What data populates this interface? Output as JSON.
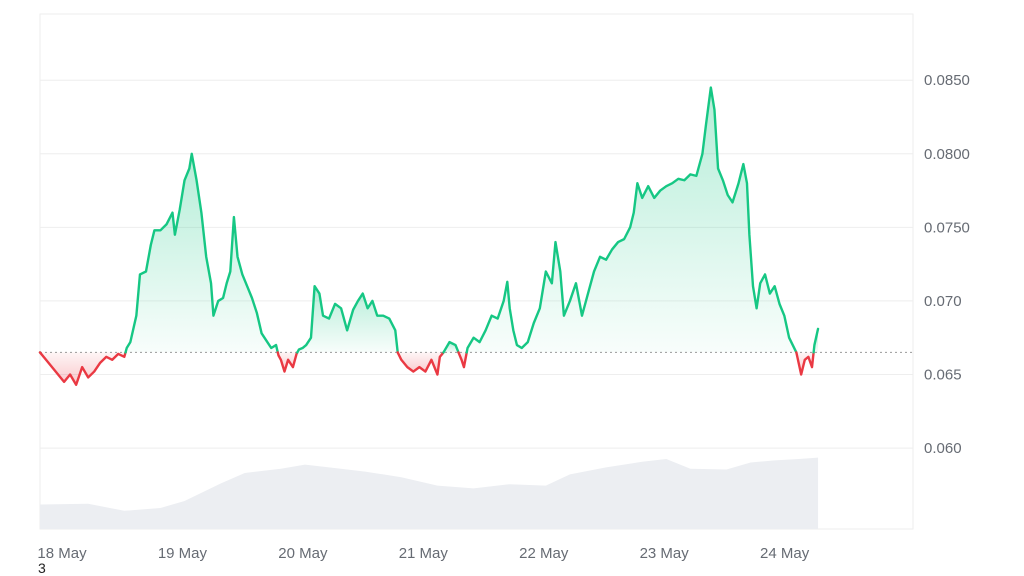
{
  "chart_data": {
    "type": "area",
    "baseline": 0.0665,
    "ylim": [
      0.0545,
      0.0895
    ],
    "y_ticks": [
      "0.0850",
      "0.0800",
      "0.0750",
      "0.070",
      "0.065",
      "0.060"
    ],
    "y_tick_values": [
      0.085,
      0.08,
      0.075,
      0.07,
      0.065,
      0.06
    ],
    "x_ticks": [
      "18 May",
      "19 May",
      "20 May",
      "21 May",
      "22 May",
      "23 May",
      "24 May"
    ],
    "x_tick_values": [
      0,
      1,
      2,
      3,
      4,
      5,
      6
    ],
    "xlim": [
      0,
      6.85
    ],
    "colors": {
      "up_line": "#16c784",
      "down_line": "#ea3943",
      "up_fill": "#16c784",
      "down_fill": "#ea3943",
      "grid": "#eeeeee",
      "volume": "#eceef2"
    },
    "series": [
      {
        "values": [
          [
            0.0,
            0.0665
          ],
          [
            0.05,
            0.066
          ],
          [
            0.1,
            0.0655
          ],
          [
            0.15,
            0.065
          ],
          [
            0.2,
            0.0645
          ],
          [
            0.25,
            0.065
          ],
          [
            0.3,
            0.0643
          ],
          [
            0.35,
            0.0655
          ],
          [
            0.4,
            0.0648
          ],
          [
            0.45,
            0.0652
          ],
          [
            0.5,
            0.0658
          ],
          [
            0.55,
            0.0662
          ],
          [
            0.6,
            0.066
          ],
          [
            0.65,
            0.0664
          ],
          [
            0.7,
            0.0662
          ],
          [
            0.72,
            0.0668
          ],
          [
            0.75,
            0.0672
          ],
          [
            0.8,
            0.069
          ],
          [
            0.83,
            0.0718
          ],
          [
            0.88,
            0.072
          ],
          [
            0.92,
            0.0738
          ],
          [
            0.95,
            0.0748
          ],
          [
            1.0,
            0.0748
          ],
          [
            1.05,
            0.0752
          ],
          [
            1.1,
            0.076
          ],
          [
            1.12,
            0.0745
          ],
          [
            1.16,
            0.0762
          ],
          [
            1.2,
            0.0782
          ],
          [
            1.24,
            0.079
          ],
          [
            1.26,
            0.08
          ],
          [
            1.3,
            0.0782
          ],
          [
            1.34,
            0.076
          ],
          [
            1.38,
            0.073
          ],
          [
            1.42,
            0.0712
          ],
          [
            1.44,
            0.069
          ],
          [
            1.48,
            0.07
          ],
          [
            1.52,
            0.0702
          ],
          [
            1.55,
            0.0712
          ],
          [
            1.58,
            0.072
          ],
          [
            1.61,
            0.0757
          ],
          [
            1.64,
            0.073
          ],
          [
            1.68,
            0.0718
          ],
          [
            1.72,
            0.071
          ],
          [
            1.76,
            0.0702
          ],
          [
            1.8,
            0.0692
          ],
          [
            1.84,
            0.0678
          ],
          [
            1.88,
            0.0673
          ],
          [
            1.92,
            0.0668
          ],
          [
            1.96,
            0.067
          ],
          [
            1.98,
            0.0663
          ],
          [
            2.0,
            0.066
          ],
          [
            2.03,
            0.0652
          ],
          [
            2.06,
            0.066
          ],
          [
            2.1,
            0.0655
          ],
          [
            2.13,
            0.0664
          ],
          [
            2.15,
            0.0667
          ],
          [
            2.18,
            0.0668
          ],
          [
            2.21,
            0.067
          ],
          [
            2.25,
            0.0675
          ],
          [
            2.28,
            0.071
          ],
          [
            2.32,
            0.0705
          ],
          [
            2.35,
            0.069
          ],
          [
            2.4,
            0.0688
          ],
          [
            2.45,
            0.0698
          ],
          [
            2.5,
            0.0695
          ],
          [
            2.55,
            0.068
          ],
          [
            2.6,
            0.0694
          ],
          [
            2.64,
            0.07
          ],
          [
            2.68,
            0.0705
          ],
          [
            2.72,
            0.0695
          ],
          [
            2.76,
            0.07
          ],
          [
            2.8,
            0.069
          ],
          [
            2.85,
            0.069
          ],
          [
            2.9,
            0.0688
          ],
          [
            2.95,
            0.068
          ],
          [
            2.97,
            0.0665
          ],
          [
            3.0,
            0.066
          ],
          [
            3.05,
            0.0655
          ],
          [
            3.1,
            0.0652
          ],
          [
            3.15,
            0.0655
          ],
          [
            3.2,
            0.0652
          ],
          [
            3.25,
            0.066
          ],
          [
            3.3,
            0.065
          ],
          [
            3.32,
            0.0662
          ],
          [
            3.35,
            0.0665
          ],
          [
            3.4,
            0.0672
          ],
          [
            3.45,
            0.067
          ],
          [
            3.5,
            0.066
          ],
          [
            3.52,
            0.0655
          ],
          [
            3.55,
            0.0668
          ],
          [
            3.6,
            0.0675
          ],
          [
            3.65,
            0.0672
          ],
          [
            3.7,
            0.068
          ],
          [
            3.75,
            0.069
          ],
          [
            3.8,
            0.0688
          ],
          [
            3.85,
            0.07
          ],
          [
            3.88,
            0.0713
          ],
          [
            3.9,
            0.0695
          ],
          [
            3.93,
            0.068
          ],
          [
            3.96,
            0.067
          ],
          [
            4.0,
            0.0668
          ],
          [
            4.05,
            0.0672
          ],
          [
            4.1,
            0.0685
          ],
          [
            4.15,
            0.0695
          ],
          [
            4.2,
            0.072
          ],
          [
            4.25,
            0.0712
          ],
          [
            4.28,
            0.074
          ],
          [
            4.32,
            0.072
          ],
          [
            4.35,
            0.069
          ],
          [
            4.4,
            0.07
          ],
          [
            4.45,
            0.0712
          ],
          [
            4.5,
            0.069
          ],
          [
            4.55,
            0.0705
          ],
          [
            4.6,
            0.072
          ],
          [
            4.65,
            0.073
          ],
          [
            4.7,
            0.0728
          ],
          [
            4.75,
            0.0735
          ],
          [
            4.8,
            0.074
          ],
          [
            4.85,
            0.0742
          ],
          [
            4.9,
            0.075
          ],
          [
            4.93,
            0.076
          ],
          [
            4.96,
            0.078
          ],
          [
            5.0,
            0.077
          ],
          [
            5.05,
            0.0778
          ],
          [
            5.1,
            0.077
          ],
          [
            5.15,
            0.0775
          ],
          [
            5.2,
            0.0778
          ],
          [
            5.25,
            0.078
          ],
          [
            5.3,
            0.0783
          ],
          [
            5.35,
            0.0782
          ],
          [
            5.4,
            0.0786
          ],
          [
            5.45,
            0.0785
          ],
          [
            5.5,
            0.08
          ],
          [
            5.53,
            0.082
          ],
          [
            5.57,
            0.0845
          ],
          [
            5.6,
            0.083
          ],
          [
            5.63,
            0.079
          ],
          [
            5.67,
            0.0782
          ],
          [
            5.71,
            0.0772
          ],
          [
            5.75,
            0.0767
          ],
          [
            5.8,
            0.078
          ],
          [
            5.84,
            0.0793
          ],
          [
            5.87,
            0.078
          ],
          [
            5.89,
            0.0745
          ],
          [
            5.92,
            0.071
          ],
          [
            5.95,
            0.0695
          ],
          [
            5.98,
            0.0712
          ],
          [
            6.02,
            0.0718
          ],
          [
            6.06,
            0.0705
          ],
          [
            6.1,
            0.071
          ],
          [
            6.14,
            0.0698
          ],
          [
            6.18,
            0.069
          ],
          [
            6.22,
            0.0675
          ],
          [
            6.25,
            0.067
          ],
          [
            6.28,
            0.0665
          ],
          [
            6.32,
            0.065
          ],
          [
            6.35,
            0.066
          ],
          [
            6.38,
            0.0662
          ],
          [
            6.41,
            0.0655
          ],
          [
            6.43,
            0.067
          ],
          [
            6.46,
            0.0681
          ]
        ]
      }
    ],
    "volume": [
      [
        0.0,
        0.35
      ],
      [
        0.4,
        0.36
      ],
      [
        0.7,
        0.26
      ],
      [
        1.0,
        0.3
      ],
      [
        1.2,
        0.4
      ],
      [
        1.5,
        0.65
      ],
      [
        1.7,
        0.8
      ],
      [
        2.0,
        0.86
      ],
      [
        2.2,
        0.92
      ],
      [
        2.4,
        0.88
      ],
      [
        2.7,
        0.82
      ],
      [
        3.0,
        0.74
      ],
      [
        3.3,
        0.62
      ],
      [
        3.6,
        0.58
      ],
      [
        3.9,
        0.64
      ],
      [
        4.2,
        0.62
      ],
      [
        4.4,
        0.78
      ],
      [
        4.7,
        0.88
      ],
      [
        5.0,
        0.96
      ],
      [
        5.2,
        1.0
      ],
      [
        5.4,
        0.86
      ],
      [
        5.7,
        0.85
      ],
      [
        5.9,
        0.95
      ],
      [
        6.1,
        0.98
      ],
      [
        6.3,
        1.0
      ],
      [
        6.46,
        1.02
      ]
    ]
  },
  "footnote": "3"
}
